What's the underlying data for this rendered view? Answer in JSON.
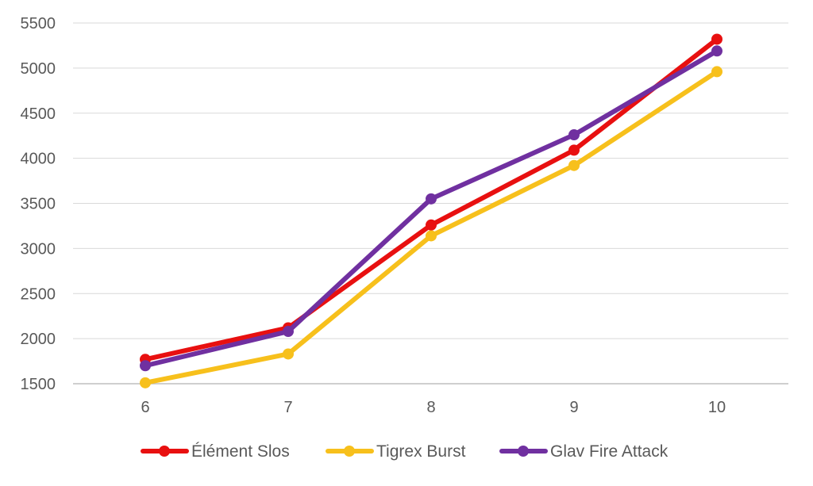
{
  "chart_data": {
    "type": "line",
    "x": [
      6,
      7,
      8,
      9,
      10
    ],
    "xticks": [
      "6",
      "7",
      "8",
      "9",
      "10"
    ],
    "yticks": [
      "1500",
      "2000",
      "2500",
      "3000",
      "3500",
      "4000",
      "4500",
      "5000",
      "5500"
    ],
    "ylim": [
      1500,
      5500
    ],
    "grid": "horizontal",
    "legend_position": "bottom",
    "series": [
      {
        "name": "Élément Slos",
        "color": "#e81010",
        "values": [
          1770,
          2120,
          3260,
          4090,
          5320
        ]
      },
      {
        "name": "Tigrex Burst",
        "color": "#f7c01c",
        "values": [
          1510,
          1830,
          3140,
          3920,
          4960
        ]
      },
      {
        "name": "Glav Fire Attack",
        "color": "#7030a0",
        "values": [
          1700,
          2080,
          3550,
          4260,
          5190
        ]
      }
    ]
  }
}
